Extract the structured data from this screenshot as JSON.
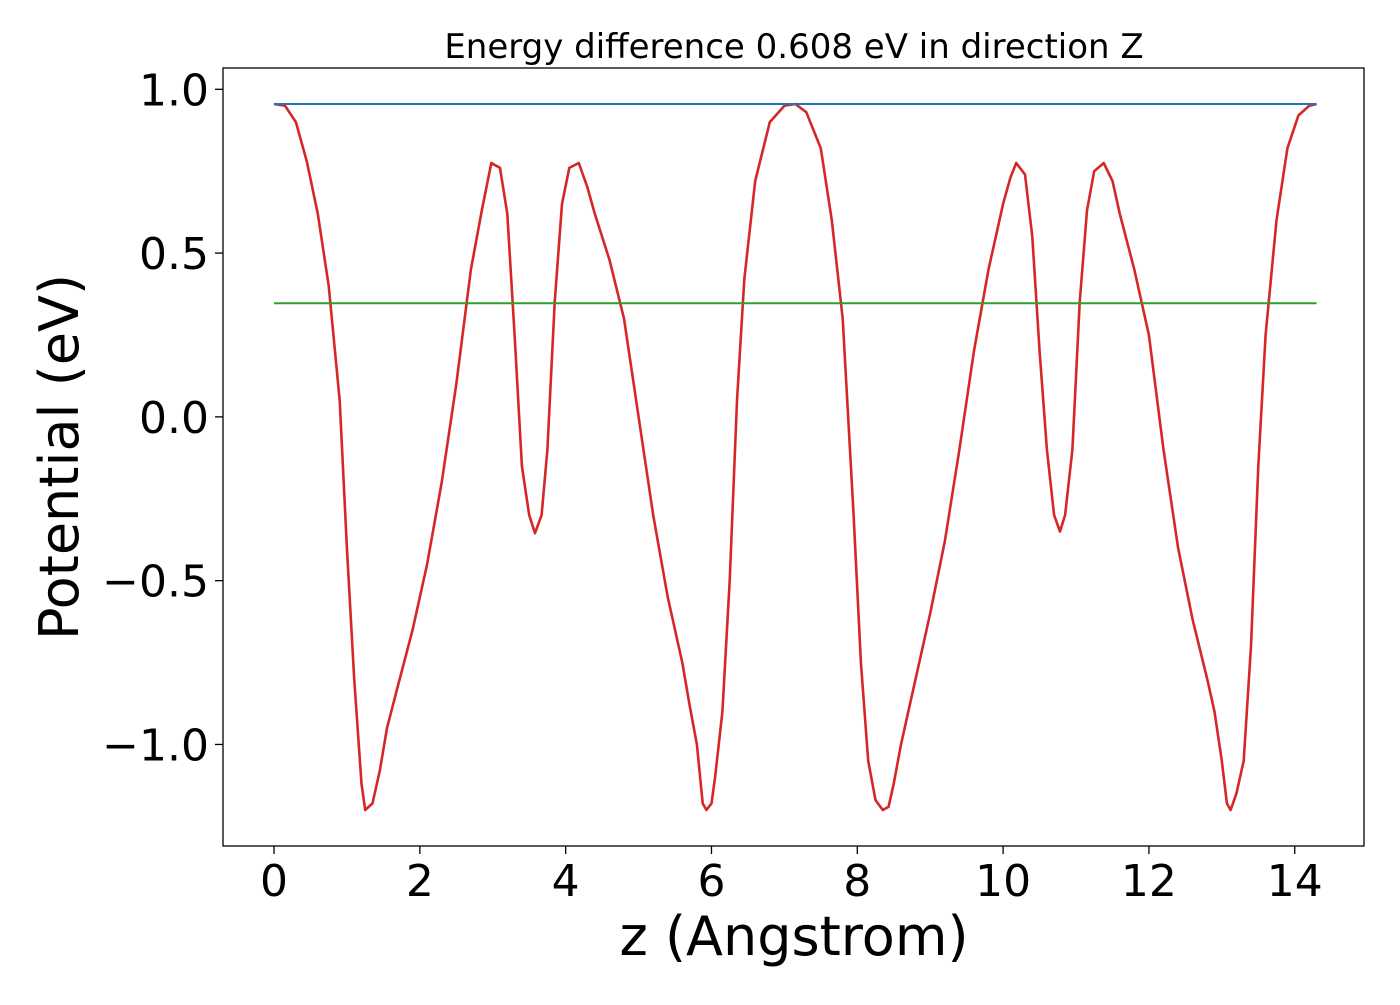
{
  "chart_data": {
    "type": "line",
    "title": "Energy difference 0.608 eV in direction Z",
    "xlabel": "z (Angstrom)",
    "ylabel": "Potential (eV)",
    "xlim": [
      -0.7,
      14.95
    ],
    "ylim": [
      -1.31,
      1.065
    ],
    "xticks": [
      0,
      2,
      4,
      6,
      8,
      10,
      12,
      14
    ],
    "yticks": [
      -1.0,
      -0.5,
      0.0,
      0.5,
      1.0
    ],
    "xtick_labels": [
      "0",
      "2",
      "4",
      "6",
      "8",
      "10",
      "12",
      "14"
    ],
    "ytick_labels": [
      "−1.0",
      "−0.5",
      "0.0",
      "0.5",
      "1.0"
    ],
    "grid": false,
    "legend": "none",
    "series": [
      {
        "color": "#d62728",
        "x": [
          0.0,
          0.15,
          0.3,
          0.45,
          0.6,
          0.75,
          0.9,
          1.0,
          1.1,
          1.2,
          1.25,
          1.35,
          1.45,
          1.55,
          1.7,
          1.9,
          2.1,
          2.3,
          2.5,
          2.7,
          2.85,
          2.98,
          3.1,
          3.2,
          3.3,
          3.4,
          3.5,
          3.58,
          3.67,
          3.75,
          3.85,
          3.95,
          4.05,
          4.18,
          4.3,
          4.4,
          4.6,
          4.8,
          5.0,
          5.2,
          5.4,
          5.6,
          5.7,
          5.8,
          5.88,
          5.93,
          6.0,
          6.05,
          6.15,
          6.25,
          6.35,
          6.45,
          6.6,
          6.8,
          7.0,
          7.15,
          7.3,
          7.5,
          7.65,
          7.8,
          7.95,
          8.05,
          8.15,
          8.25,
          8.35,
          8.43,
          8.5,
          8.6,
          8.7,
          8.8,
          9.0,
          9.2,
          9.4,
          9.6,
          9.8,
          10.0,
          10.1,
          10.18,
          10.3,
          10.4,
          10.5,
          10.6,
          10.7,
          10.78,
          10.85,
          10.95,
          11.05,
          11.15,
          11.25,
          11.38,
          11.5,
          11.6,
          11.8,
          12.0,
          12.2,
          12.4,
          12.6,
          12.8,
          12.9,
          13.0,
          13.07,
          13.12,
          13.2,
          13.3,
          13.4,
          13.5,
          13.6,
          13.75,
          13.9,
          14.05,
          14.2,
          14.3
        ],
        "y": [
          0.955,
          0.95,
          0.9,
          0.78,
          0.62,
          0.4,
          0.05,
          -0.4,
          -0.8,
          -1.12,
          -1.2,
          -1.18,
          -1.08,
          -0.95,
          -0.82,
          -0.65,
          -0.45,
          -0.2,
          0.1,
          0.45,
          0.63,
          0.775,
          0.76,
          0.62,
          0.25,
          -0.15,
          -0.3,
          -0.355,
          -0.3,
          -0.1,
          0.35,
          0.65,
          0.76,
          0.775,
          0.7,
          0.62,
          0.48,
          0.3,
          0.0,
          -0.3,
          -0.55,
          -0.75,
          -0.88,
          -1.0,
          -1.18,
          -1.2,
          -1.18,
          -1.1,
          -0.9,
          -0.5,
          0.05,
          0.42,
          0.72,
          0.9,
          0.95,
          0.955,
          0.93,
          0.82,
          0.6,
          0.3,
          -0.3,
          -0.75,
          -1.05,
          -1.17,
          -1.2,
          -1.19,
          -1.12,
          -1.0,
          -0.9,
          -0.8,
          -0.6,
          -0.38,
          -0.1,
          0.2,
          0.45,
          0.65,
          0.73,
          0.775,
          0.74,
          0.55,
          0.2,
          -0.1,
          -0.3,
          -0.35,
          -0.3,
          -0.1,
          0.35,
          0.63,
          0.75,
          0.775,
          0.72,
          0.62,
          0.45,
          0.25,
          -0.1,
          -0.4,
          -0.62,
          -0.8,
          -0.9,
          -1.05,
          -1.18,
          -1.2,
          -1.15,
          -1.05,
          -0.7,
          -0.15,
          0.25,
          0.6,
          0.82,
          0.92,
          0.95,
          0.955
        ]
      },
      {
        "color": "#1f77b4",
        "x": [
          0.0,
          14.3
        ],
        "y": [
          0.955,
          0.955
        ]
      },
      {
        "color": "#2ca02c",
        "x": [
          0.0,
          14.3
        ],
        "y": [
          0.347,
          0.347
        ]
      }
    ]
  }
}
